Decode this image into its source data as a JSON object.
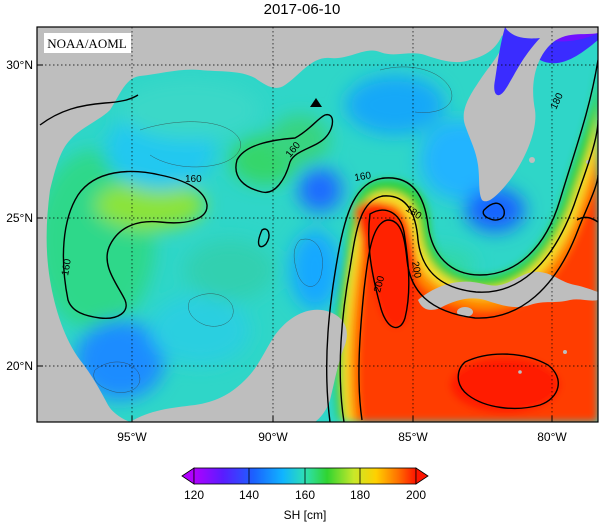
{
  "title": "2017-06-10",
  "credit": "NOAA/AOML",
  "map": {
    "lat_labels": [
      "30°N",
      "25°N",
      "20°N"
    ],
    "lon_labels": [
      "95°W",
      "90°W",
      "85°W",
      "80°W"
    ],
    "contour_labels": [
      "160",
      "160",
      "160",
      "160",
      "180",
      "180",
      "200",
      "200"
    ],
    "marker": "black-triangle",
    "colors": {
      "land": "#bebebe",
      "ocean_low": "#0d8fff",
      "ocean_mid": "#33e0b0",
      "green": "#33d233",
      "warm": "#ff2a00"
    }
  },
  "colorbar": {
    "ticks": [
      "120",
      "140",
      "160",
      "180",
      "200"
    ],
    "label": "SH [cm]",
    "stops": [
      "#a000ff",
      "#4030ff",
      "#0aa0ff",
      "#30e0d0",
      "#30d230",
      "#b0e830",
      "#ffe000",
      "#ff8000",
      "#ff1a00"
    ]
  }
}
